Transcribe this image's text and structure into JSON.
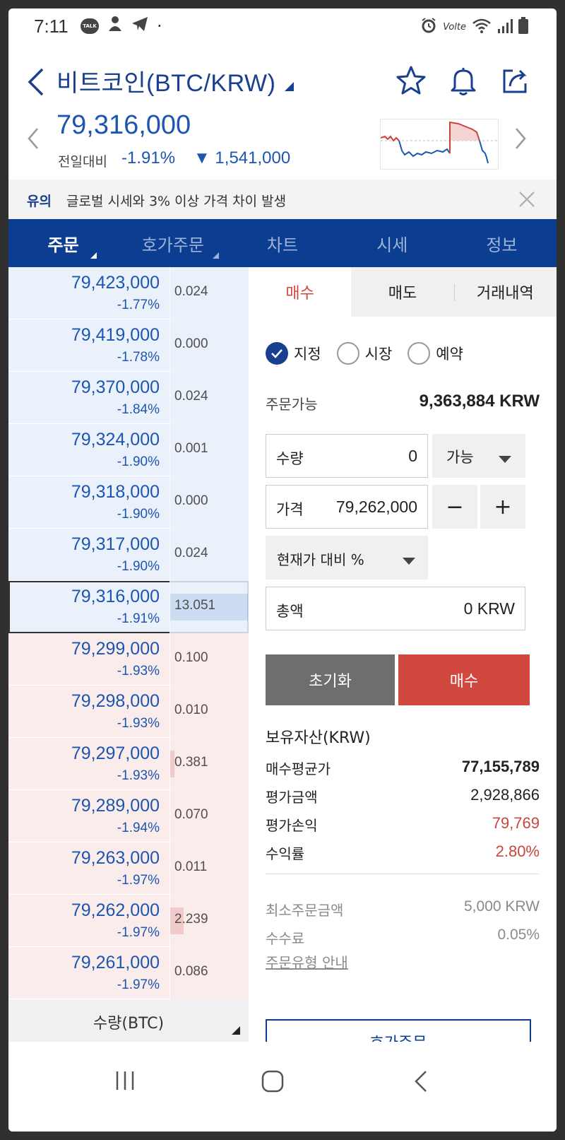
{
  "status_bar": {
    "time": "7:11",
    "talk_badge": "TALK",
    "dot": "·",
    "volte": "Volte"
  },
  "header": {
    "title": "비트코인(BTC/KRW)"
  },
  "price": {
    "current": "79,316,000",
    "change_label": "전일대비",
    "change_pct": "-1.91%",
    "change_amount": "▼ 1,541,000"
  },
  "notice": {
    "label": "유의",
    "text": "글로벌 시세와 3% 이상 가격 차이 발생"
  },
  "tabs": [
    {
      "label": "주문",
      "active": true,
      "has_arrow": true
    },
    {
      "label": "호가주문",
      "active": false,
      "has_arrow": true
    },
    {
      "label": "차트",
      "active": false,
      "has_arrow": false
    },
    {
      "label": "시세",
      "active": false,
      "has_arrow": false
    },
    {
      "label": "정보",
      "active": false,
      "has_arrow": false
    }
  ],
  "orderbook": {
    "rows": [
      {
        "price": "79,423,000",
        "pct": "-1.77%",
        "qty": "0.024",
        "side": "ask",
        "level": 0
      },
      {
        "price": "79,419,000",
        "pct": "-1.78%",
        "qty": "0.000",
        "side": "ask",
        "level": 0
      },
      {
        "price": "79,370,000",
        "pct": "-1.84%",
        "qty": "0.024",
        "side": "ask",
        "level": 0
      },
      {
        "price": "79,324,000",
        "pct": "-1.90%",
        "qty": "0.001",
        "side": "ask",
        "level": 0
      },
      {
        "price": "79,318,000",
        "pct": "-1.90%",
        "qty": "0.000",
        "side": "ask",
        "level": 0
      },
      {
        "price": "79,317,000",
        "pct": "-1.90%",
        "qty": "0.024",
        "side": "ask",
        "level": 0
      },
      {
        "price": "79,316,000",
        "pct": "-1.91%",
        "qty": "13.051",
        "side": "ask",
        "level": 1.0,
        "current": true
      },
      {
        "price": "79,299,000",
        "pct": "-1.93%",
        "qty": "0.100",
        "side": "bid",
        "level": 0
      },
      {
        "price": "79,298,000",
        "pct": "-1.93%",
        "qty": "0.010",
        "side": "bid",
        "level": 0
      },
      {
        "price": "79,297,000",
        "pct": "-1.93%",
        "qty": "0.381",
        "side": "bid",
        "level": 0.03
      },
      {
        "price": "79,289,000",
        "pct": "-1.94%",
        "qty": "0.070",
        "side": "bid",
        "level": 0
      },
      {
        "price": "79,263,000",
        "pct": "-1.97%",
        "qty": "0.011",
        "side": "bid",
        "level": 0
      },
      {
        "price": "79,262,000",
        "pct": "-1.97%",
        "qty": "2.239",
        "side": "bid",
        "level": 0.17
      },
      {
        "price": "79,261,000",
        "pct": "-1.97%",
        "qty": "0.086",
        "side": "bid",
        "level": 0
      }
    ],
    "footer_label": "수량(BTC)"
  },
  "order_panel": {
    "sub_tabs": [
      {
        "label": "매수",
        "active": true
      },
      {
        "label": "매도",
        "active": false
      },
      {
        "label": "거래내역",
        "active": false
      }
    ],
    "order_types": [
      {
        "label": "지정",
        "checked": true
      },
      {
        "label": "시장",
        "checked": false
      },
      {
        "label": "예약",
        "checked": false
      }
    ],
    "available_label": "주문가능",
    "available_value": "9,363,884 KRW",
    "quantity_label": "수량",
    "quantity_value": "0",
    "quantity_select": "가능",
    "price_label": "가격",
    "price_value": "79,262,000",
    "minus": "−",
    "plus": "+",
    "pct_select": "현재가 대비 %",
    "total_label": "총액",
    "total_value": "0 KRW",
    "reset_button": "초기화",
    "buy_button": "매수",
    "assets_title": "보유자산(KRW)",
    "assets": [
      {
        "label": "매수평균가",
        "value": "77,155,789",
        "style": "bold"
      },
      {
        "label": "평가금액",
        "value": "2,928,866",
        "style": "normal"
      },
      {
        "label": "평가손익",
        "value": "79,769",
        "style": "red"
      },
      {
        "label": "수익률",
        "value": "2.80%",
        "style": "red"
      }
    ],
    "min_order_label": "최소주문금액",
    "min_order_value": "5,000 KRW",
    "fee_label": "수수료",
    "fee_value": "0.05%",
    "guide_link": "주문유형 안내",
    "hoga_button": "호가주문"
  },
  "colors": {
    "brand_navy": "#0b3d91",
    "price_blue": "#1c56b0",
    "buy_red": "#d0483e",
    "ask_bg": "#eaf1fb",
    "bid_bg": "#fbecec"
  }
}
